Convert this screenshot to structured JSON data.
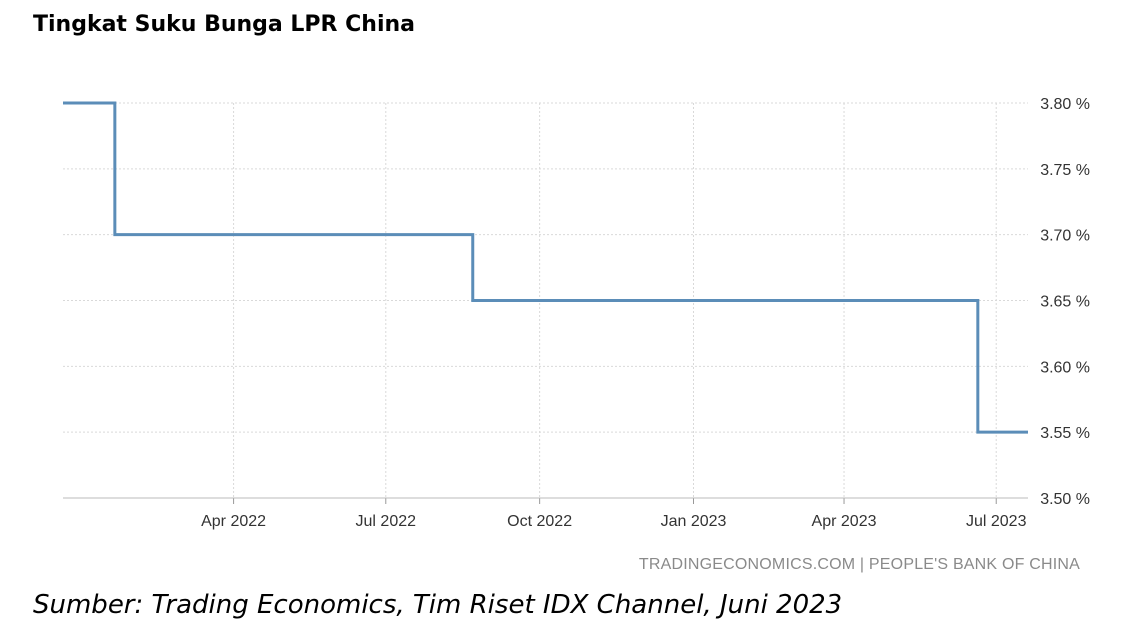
{
  "chart_data": {
    "type": "line",
    "title": "Tingkat Suku Bunga LPR China",
    "xlabel": "",
    "ylabel": "",
    "step": true,
    "grid": true,
    "ylim": [
      3.5,
      3.8
    ],
    "yticks": [
      3.8,
      3.75,
      3.7,
      3.65,
      3.6,
      3.55,
      3.5
    ],
    "ytick_labels": [
      "3.80 %",
      "3.75 %",
      "3.70 %",
      "3.65 %",
      "3.60 %",
      "3.55 %",
      "3.50 %"
    ],
    "xlim": [
      "2021-12-20",
      "2023-07-20"
    ],
    "xticks": [
      "2022-04-01",
      "2022-07-01",
      "2022-10-01",
      "2023-01-01",
      "2023-04-01",
      "2023-07-01"
    ],
    "xtick_labels": [
      "Apr 2022",
      "Jul 2022",
      "Oct 2022",
      "Jan 2023",
      "Apr 2023",
      "Jul 2023"
    ],
    "color": "#5b8db8",
    "series": [
      {
        "x": [
          "2021-12-20",
          "2022-01-20",
          "2022-08-22",
          "2023-06-20",
          "2023-07-20"
        ],
        "values": [
          3.8,
          3.7,
          3.65,
          3.55,
          3.55
        ]
      }
    ]
  },
  "source_text": "TRADINGECONOMICS.COM | PEOPLE'S BANK OF CHINA",
  "caption": "Sumber: Trading Economics, Tim Riset IDX Channel, Juni 2023"
}
